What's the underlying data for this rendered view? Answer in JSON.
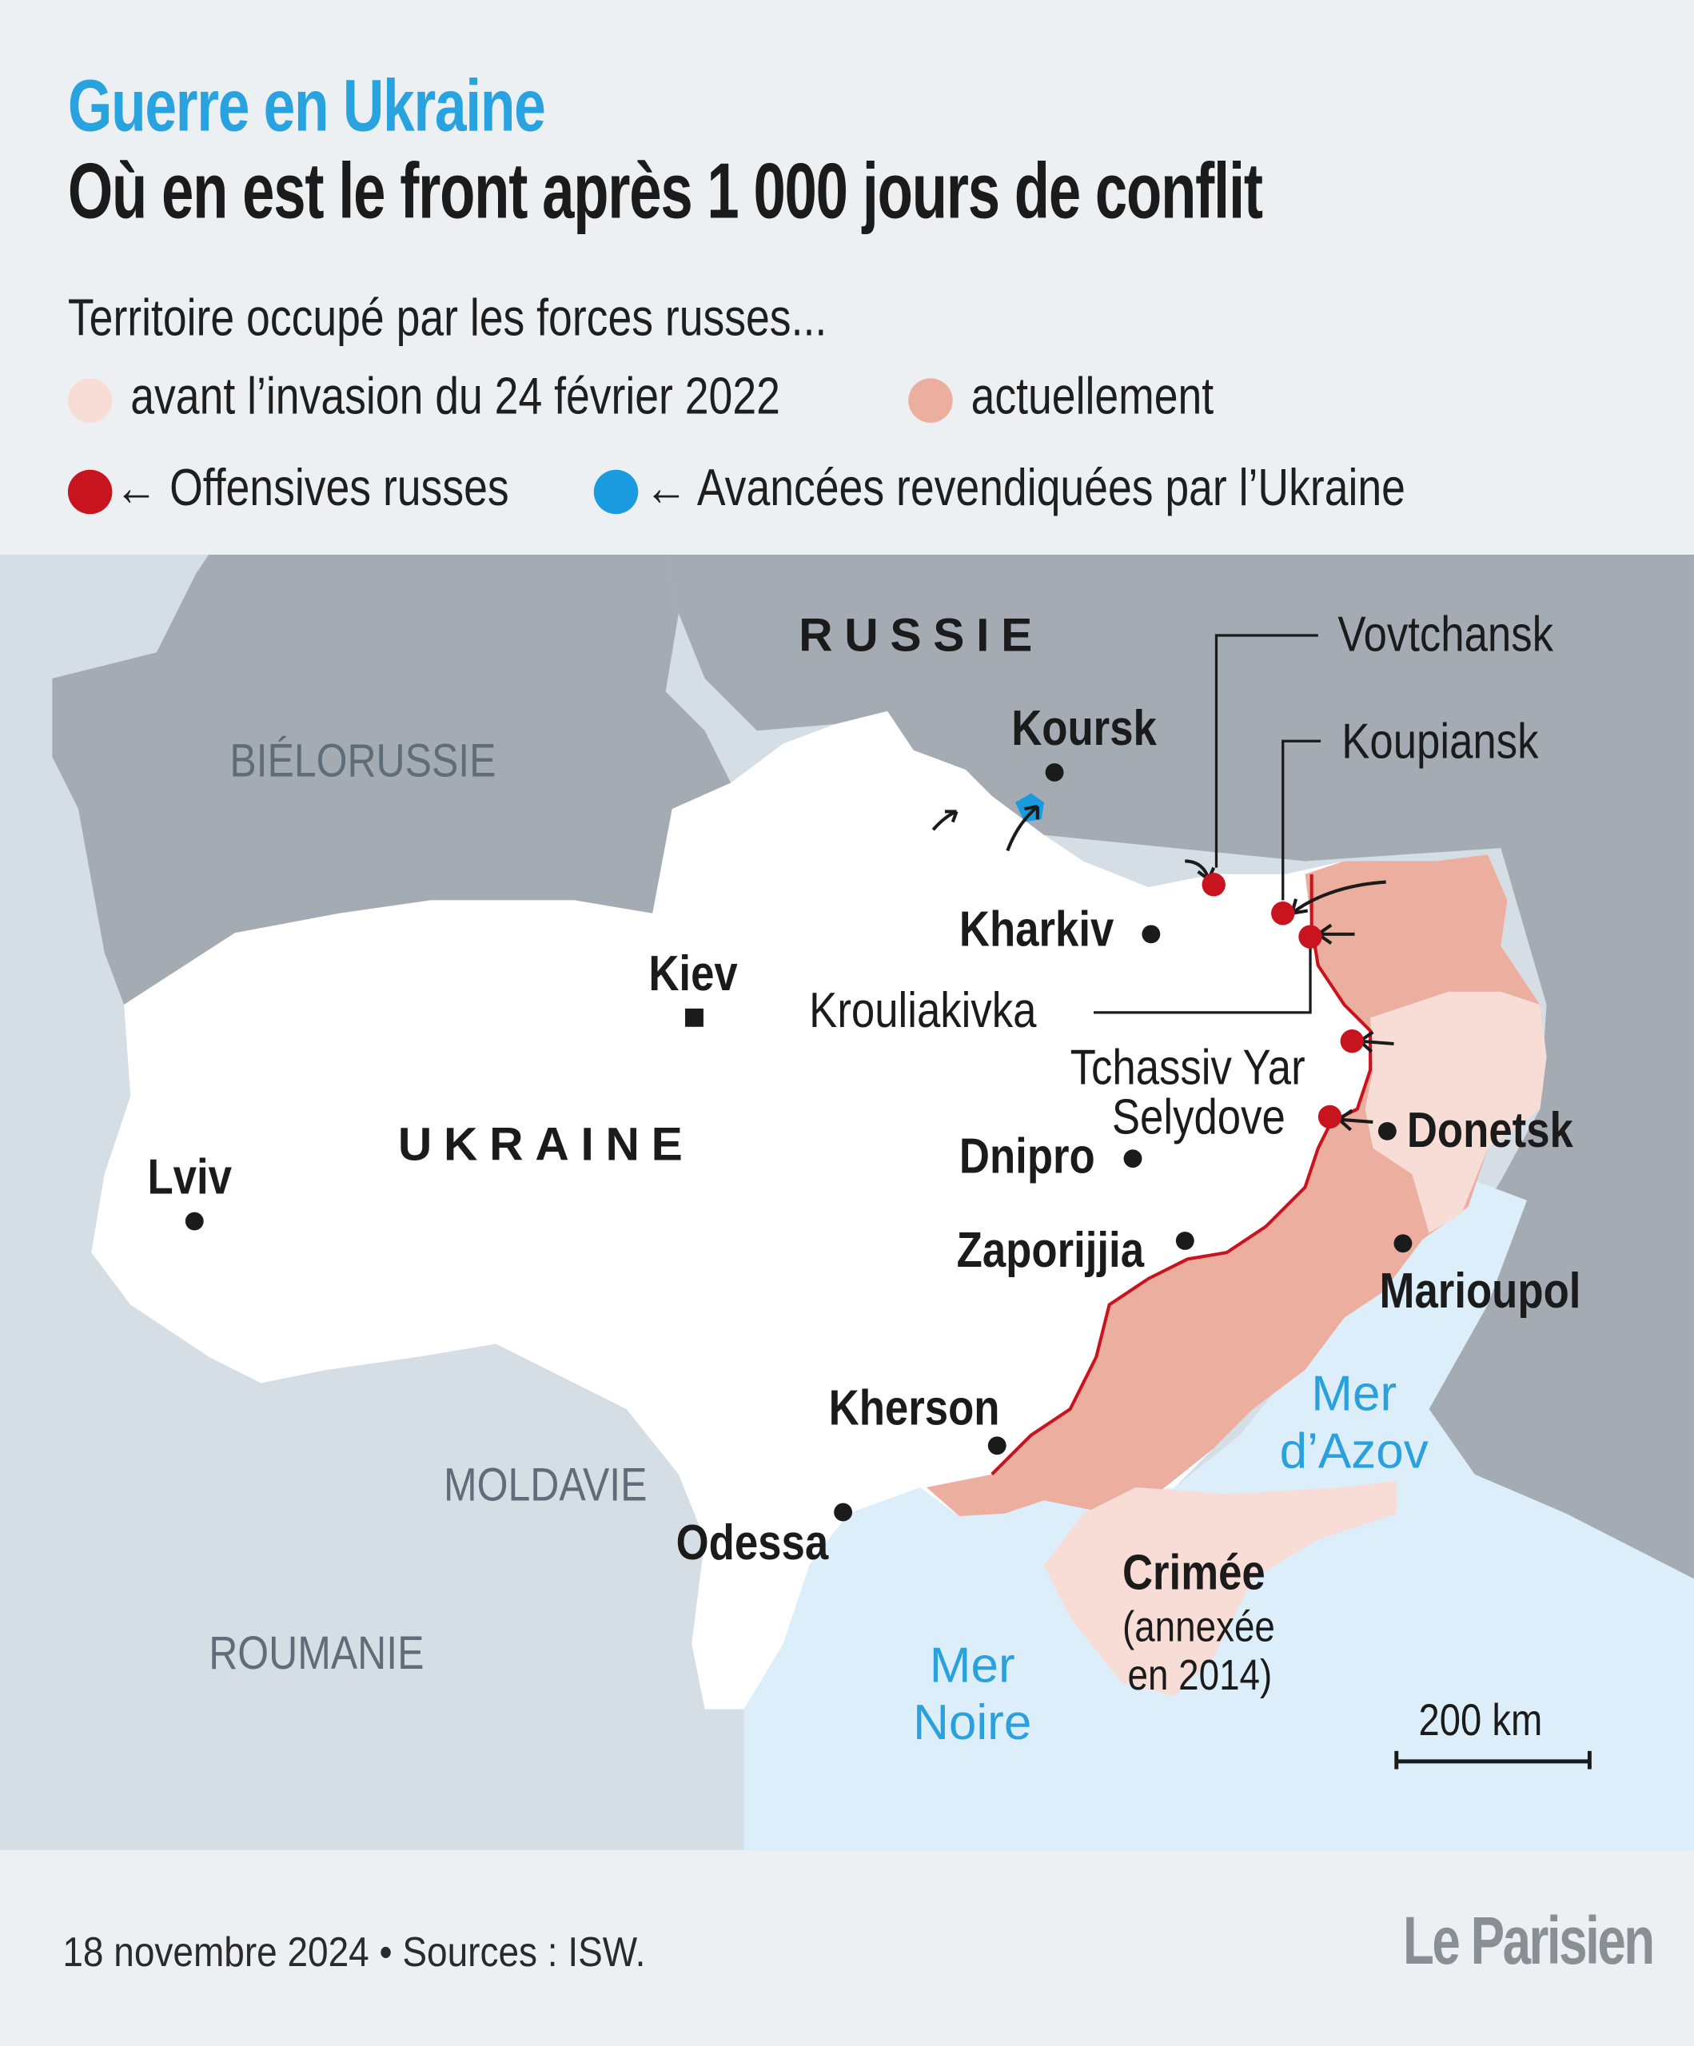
{
  "header": {
    "kicker": "Guerre en Ukraine",
    "title": "Où en est le front après 1 000 jours de conflit",
    "lead": "Territoire occupé par les forces russes..."
  },
  "legend": {
    "before_invasion": "avant l’invasion du 24 février 2022",
    "currently": "actuellement",
    "russian_offensives": "← Offensives russes",
    "ukraine_advances": "← Avancées revendiquées par l’Ukraine"
  },
  "colors": {
    "kicker": "#29a3e0",
    "occupied_before_2022": "#f8dcd6",
    "occupied_current": "#ebae9f",
    "russian_offensive": "#c8141e",
    "ukraine_advance": "#1a9be0",
    "front_line": "#c8141e",
    "sea": "#dbeefa",
    "neighbor_dark": "#a4abb3",
    "neighbor_light": "#d5dde5",
    "ukraine": "#ffffff"
  },
  "map": {
    "countries": {
      "russia": "RUSSIE",
      "belarus": "BIÉLORUSSIE",
      "ukraine": "UKRAINE",
      "moldova": "MOLDAVIE",
      "romania": "ROUMANIE"
    },
    "seas": {
      "black_sea_1": "Mer",
      "black_sea_2": "Noire",
      "azov_1": "Mer",
      "azov_2": "d’Azov"
    },
    "cities": {
      "kursk": "Koursk",
      "kharkiv": "Kharkiv",
      "kiev": "Kiev",
      "lviv": "Lviv",
      "dnipro": "Dnipro",
      "zaporizhzhia": "Zaporijjia",
      "kherson": "Kherson",
      "odessa": "Odessa",
      "donetsk": "Donetsk",
      "mariupol": "Marioupol"
    },
    "crimea": {
      "name": "Crimée",
      "note_1": "(annexée",
      "note_2": "en 2014)"
    },
    "offensives": {
      "vovchansk": "Vovtchansk",
      "kupiansk": "Koupiansk",
      "kruhliakivka": "Krouliakivka",
      "chasiv_yar": "Tchassiv Yar",
      "selydove": "Selydove"
    },
    "scale": "200 km"
  },
  "footer": {
    "source": "18 novembre 2024 • Sources : ISW.",
    "logo": "Le Parisien"
  }
}
